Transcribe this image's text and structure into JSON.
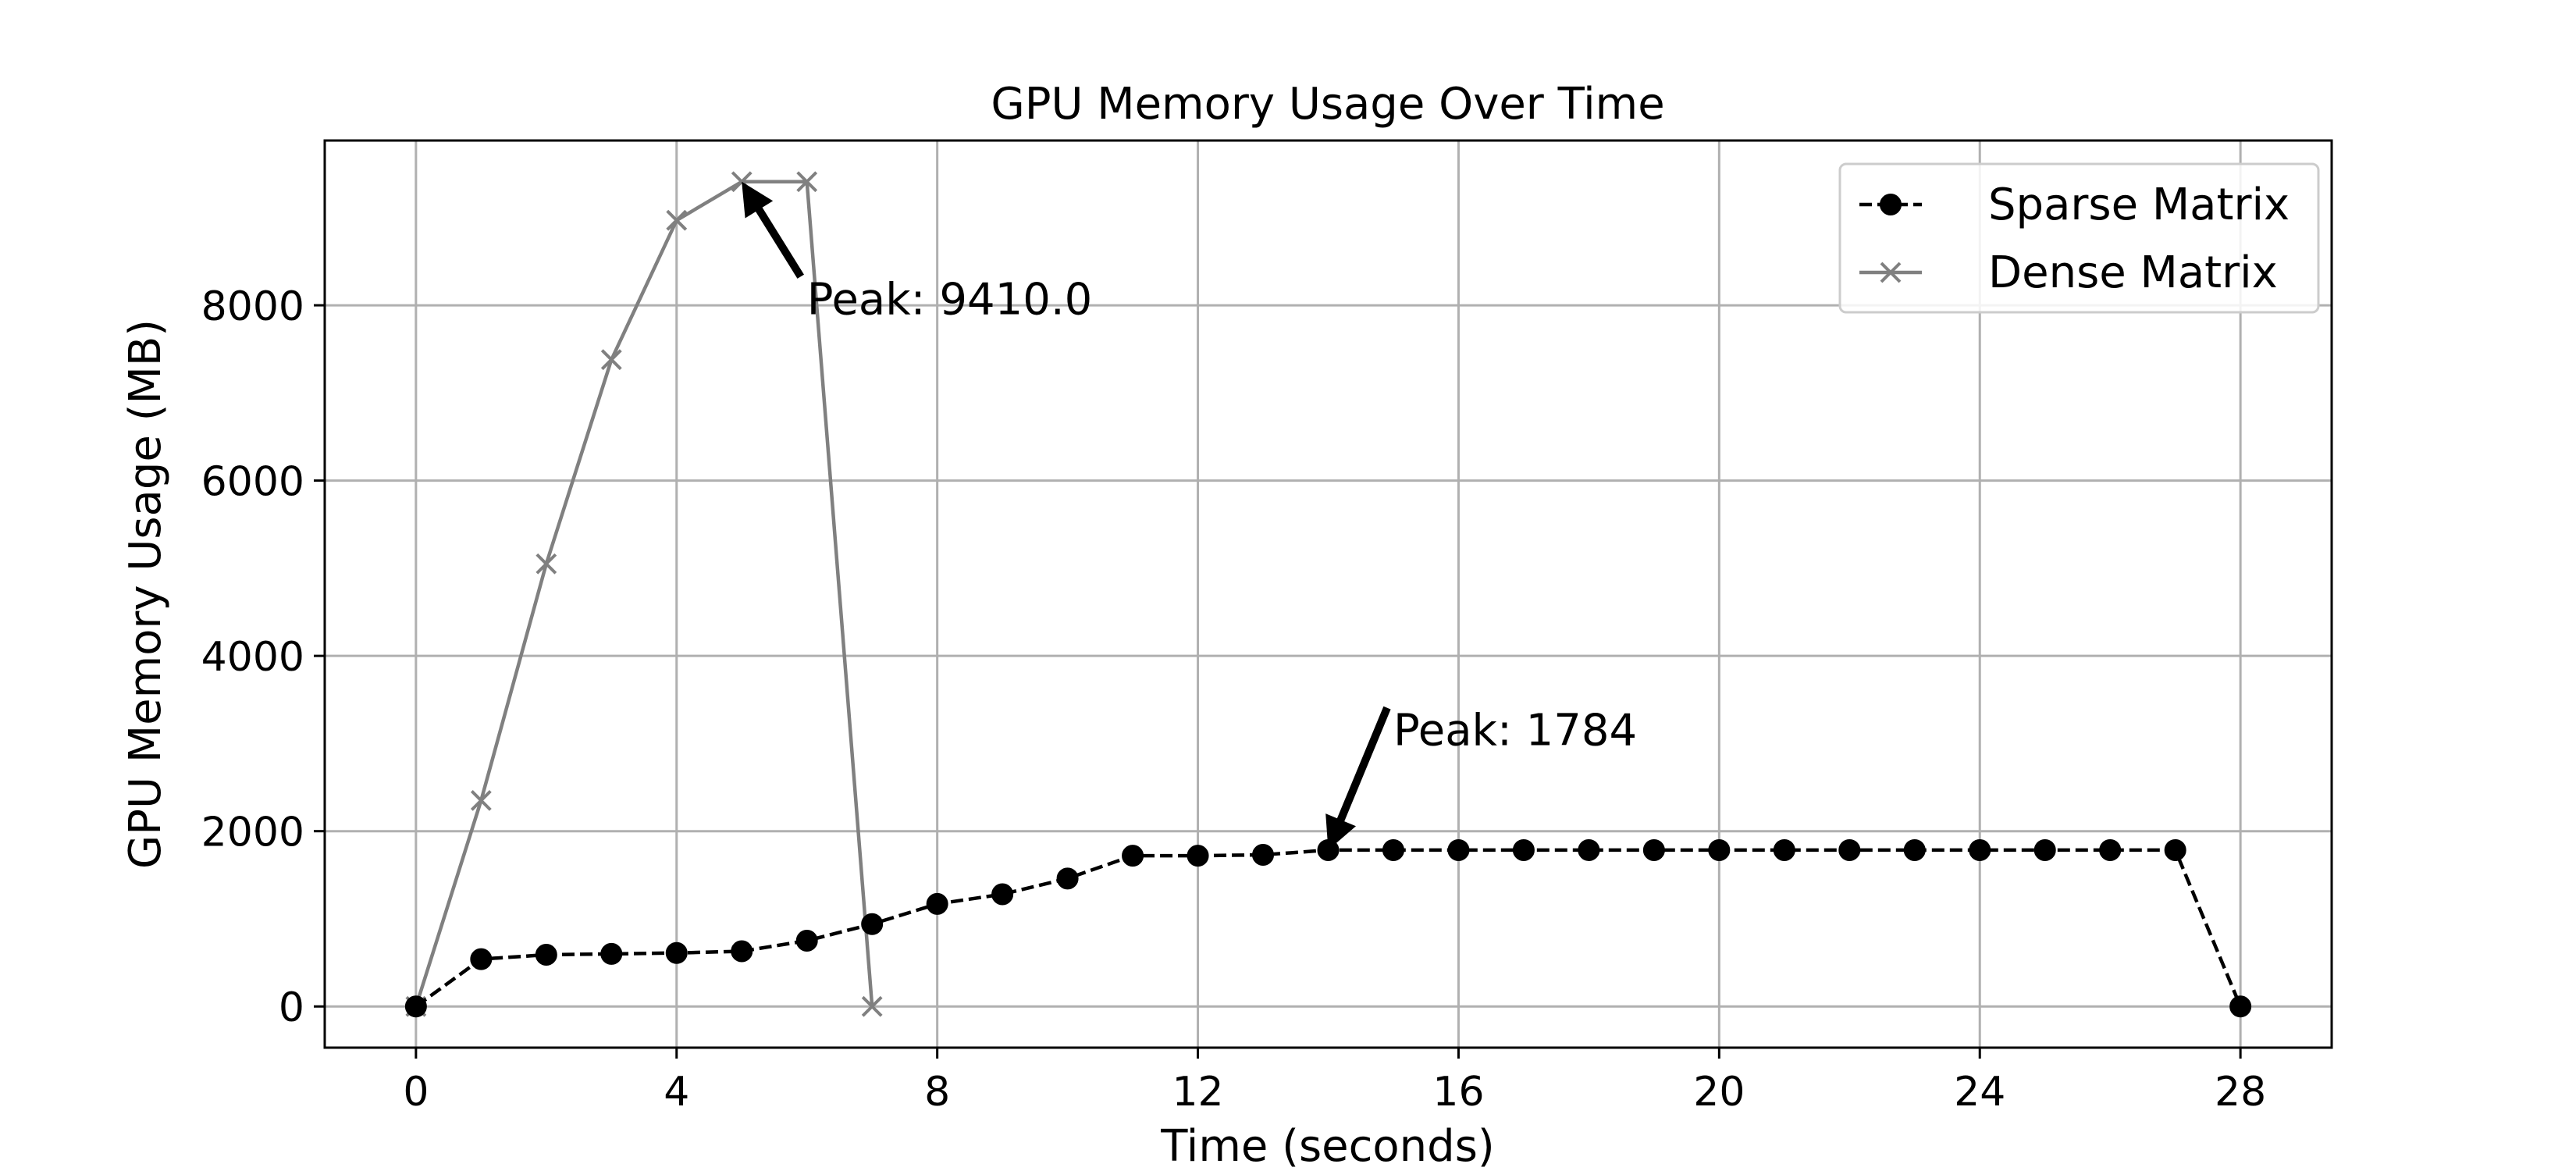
{
  "chart_data": {
    "type": "line",
    "title": "GPU Memory Usage Over Time",
    "xlabel": "Time (seconds)",
    "ylabel": "GPU Memory Usage (MB)",
    "xlim": [
      -1.4,
      29.4
    ],
    "ylim": [
      -470,
      9880
    ],
    "xticks": [
      0,
      4,
      8,
      12,
      16,
      20,
      24,
      28
    ],
    "yticks": [
      0,
      2000,
      4000,
      6000,
      8000
    ],
    "grid": true,
    "legend_position": "top-right",
    "series": [
      {
        "name": "Sparse Matrix",
        "color": "#000000",
        "line_style": "dashed",
        "marker": "circle",
        "x": [
          0,
          1,
          2,
          3,
          4,
          5,
          6,
          7,
          8,
          9,
          10,
          11,
          12,
          13,
          14,
          15,
          16,
          17,
          18,
          19,
          20,
          21,
          22,
          23,
          24,
          25,
          26,
          27,
          28
        ],
        "y": [
          0,
          540,
          590,
          600,
          610,
          630,
          750,
          940,
          1170,
          1280,
          1460,
          1720,
          1720,
          1730,
          1784,
          1784,
          1784,
          1784,
          1784,
          1784,
          1784,
          1784,
          1784,
          1784,
          1784,
          1784,
          1784,
          1784,
          0
        ]
      },
      {
        "name": "Dense Matrix",
        "color": "#808080",
        "line_style": "solid",
        "marker": "x",
        "x": [
          0,
          1,
          2,
          3,
          4,
          5,
          6,
          7
        ],
        "y": [
          0,
          2350,
          5050,
          7380,
          8970,
          9410,
          9410,
          0
        ]
      }
    ],
    "annotations": [
      {
        "text": "Peak: 9410.0",
        "point": [
          5,
          9410
        ],
        "text_at": [
          6,
          7900
        ]
      },
      {
        "text": "Peak: 1784",
        "point": [
          14,
          1784
        ],
        "text_at": [
          15,
          2980
        ]
      }
    ]
  }
}
